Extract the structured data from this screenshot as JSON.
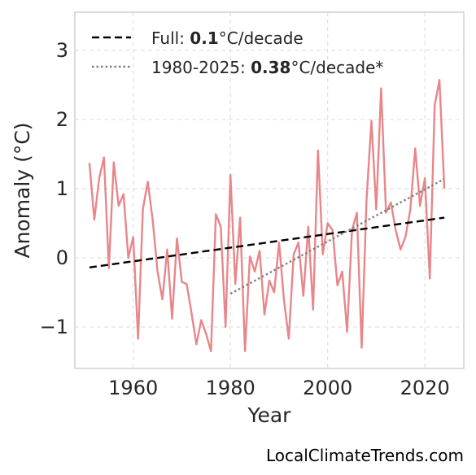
{
  "chart_data": {
    "type": "line",
    "xlabel": "Year",
    "ylabel": "Anomaly (°C)",
    "xlim": [
      1948,
      2028
    ],
    "ylim": [
      -1.6,
      3.55
    ],
    "xticks": [
      "1960",
      "1980",
      "2000",
      "2020"
    ],
    "yticks": [
      "3",
      "2",
      "1",
      "0",
      "−1"
    ],
    "grid": true,
    "legend_position": "top-left",
    "legend": [
      {
        "prefix": "Full: ",
        "value": "0.1",
        "suffix": "°C/decade",
        "style": "dashed",
        "color": "#000000"
      },
      {
        "prefix": "1980-2025: ",
        "value": "0.38",
        "suffix": "°C/decade*",
        "style": "dotted",
        "color": "#808080"
      }
    ],
    "series": [
      {
        "color": "#e8868a",
        "x": [
          1951,
          1952,
          1953,
          1954,
          1955,
          1956,
          1957,
          1958,
          1959,
          1960,
          1961,
          1962,
          1963,
          1964,
          1965,
          1966,
          1967,
          1968,
          1969,
          1970,
          1971,
          1972,
          1973,
          1974,
          1975,
          1976,
          1977,
          1978,
          1979,
          1980,
          1981,
          1982,
          1983,
          1984,
          1985,
          1986,
          1987,
          1988,
          1989,
          1990,
          1991,
          1992,
          1993,
          1994,
          1995,
          1996,
          1997,
          1998,
          1999,
          2000,
          2001,
          2002,
          2003,
          2004,
          2005,
          2006,
          2007,
          2008,
          2009,
          2010,
          2011,
          2012,
          2013,
          2014,
          2015,
          2016,
          2017,
          2018,
          2019,
          2020,
          2021,
          2022,
          2023,
          2024
        ],
        "y": [
          1.37,
          0.55,
          1.15,
          1.45,
          -0.15,
          1.38,
          0.75,
          0.92,
          0.0,
          0.3,
          -1.17,
          0.7,
          1.1,
          0.55,
          -0.2,
          -0.6,
          0.12,
          -0.88,
          0.28,
          -0.35,
          -0.38,
          -0.8,
          -1.25,
          -0.9,
          -1.1,
          -1.35,
          0.63,
          0.45,
          -1.0,
          1.2,
          -0.38,
          0.58,
          -1.35,
          0.02,
          -0.2,
          0.1,
          -0.82,
          -0.33,
          -0.5,
          0.22,
          -0.6,
          -1.17,
          0.05,
          0.22,
          -0.55,
          0.45,
          -0.75,
          1.55,
          0.05,
          0.5,
          0.4,
          -0.4,
          -0.2,
          -1.07,
          0.4,
          0.65,
          -1.3,
          0.85,
          1.98,
          0.7,
          2.45,
          0.65,
          0.8,
          0.4,
          0.12,
          0.3,
          0.7,
          1.58,
          0.75,
          1.15,
          -0.3,
          2.2,
          2.57,
          1.0
        ]
      }
    ],
    "trend_lines": [
      {
        "name": "Full",
        "x": [
          1951,
          2024
        ],
        "y": [
          -0.14,
          0.58
        ],
        "style": "dashed",
        "color": "#000000"
      },
      {
        "name": "1980-2025",
        "x": [
          1980,
          2024
        ],
        "y": [
          -0.52,
          1.14
        ],
        "style": "dotted",
        "color": "#808080"
      }
    ]
  },
  "watermark": "LocalClimateTrends.com"
}
